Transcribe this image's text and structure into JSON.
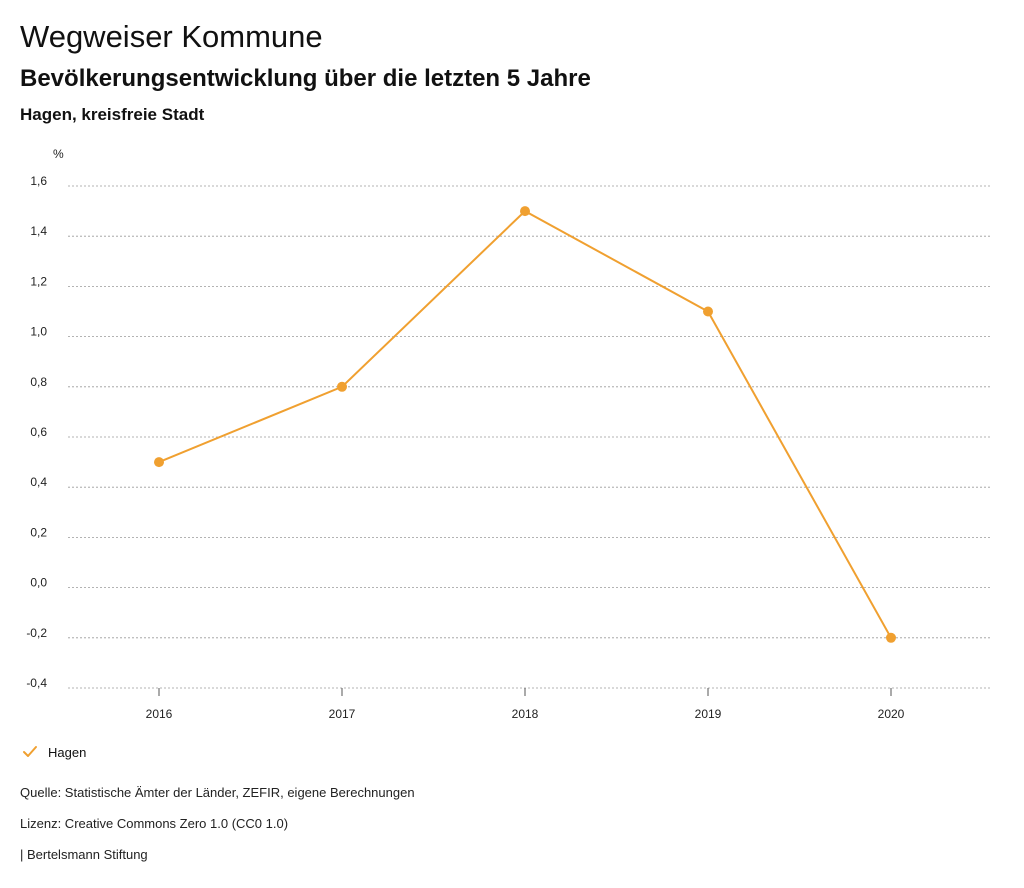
{
  "header": {
    "title": "Wegweiser Kommune",
    "subtitle": "Bevölkerungsentwicklung über die letzten 5 Jahre",
    "region": "Hagen, kreisfreie Stadt"
  },
  "chart_data": {
    "type": "line",
    "x": [
      "2016",
      "2017",
      "2018",
      "2019",
      "2020"
    ],
    "series": [
      {
        "name": "Hagen",
        "values": [
          0.5,
          0.8,
          1.5,
          1.1,
          -0.2
        ],
        "color": "#f0a030"
      }
    ],
    "yunit": "%",
    "ylim": [
      -0.4,
      1.6
    ],
    "yticks": [
      "1,6",
      "1,4",
      "1,2",
      "1,0",
      "0,8",
      "0,6",
      "0,4",
      "0,2",
      "0,0",
      "-0,2",
      "-0,4"
    ],
    "grid": true,
    "grid_style": "dotted",
    "legend_position": "bottom-left"
  },
  "legend": {
    "label": "Hagen",
    "icon": "check-icon",
    "color": "#f0a030"
  },
  "footer": {
    "source": "Quelle: Statistische Ämter der Länder, ZEFIR, eigene Berechnungen",
    "license": "Lizenz: Creative Commons Zero 1.0 (CC0 1.0)",
    "brand": "| Bertelsmann Stiftung"
  }
}
